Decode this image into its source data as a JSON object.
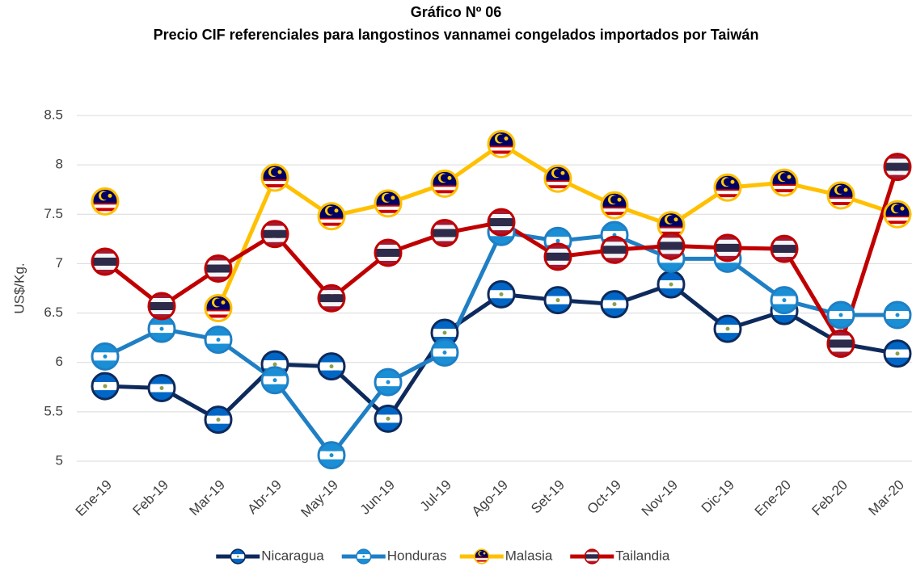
{
  "chart_data": {
    "type": "line",
    "title": "Gráfico Nº 06",
    "subtitle": "Precio CIF referenciales para langostinos vannamei congelados importados por Taiwán",
    "y_label": "US$/Kg.",
    "categories": [
      "Ene-19",
      "Feb-19",
      "Mar-19",
      "Abr-19",
      "May-19",
      "Jun-19",
      "Jul-19",
      "Ago-19",
      "Set-19",
      "Oct-19",
      "Nov-19",
      "Dic-19",
      "Ene-20",
      "Feb-20",
      "Mar-20"
    ],
    "series": [
      {
        "name": "Nicaragua",
        "color": "#0e2a5c",
        "values": [
          5.76,
          5.74,
          5.42,
          5.98,
          5.96,
          5.43,
          6.3,
          6.69,
          6.63,
          6.59,
          6.79,
          6.34,
          6.52,
          6.19,
          6.09
        ]
      },
      {
        "name": "Honduras",
        "color": "#1f7fc4",
        "values": [
          6.06,
          6.34,
          6.23,
          5.82,
          5.06,
          5.8,
          6.1,
          7.32,
          7.23,
          7.29,
          7.05,
          7.05,
          6.63,
          6.48,
          6.48
        ]
      },
      {
        "name": "Malasia",
        "color": "#ffc000",
        "values": [
          7.63,
          null,
          6.55,
          7.87,
          7.48,
          7.61,
          7.81,
          8.21,
          7.86,
          7.59,
          7.39,
          7.77,
          7.82,
          7.69,
          7.5
        ]
      },
      {
        "name": "Tailandia",
        "color": "#c00000",
        "values": [
          7.02,
          6.57,
          6.95,
          7.3,
          6.65,
          7.11,
          7.31,
          7.42,
          7.07,
          7.14,
          7.18,
          7.16,
          7.15,
          6.19,
          7.98
        ]
      }
    ],
    "ylim": [
      5,
      8.5
    ],
    "yticks": [
      5,
      5.5,
      6,
      6.5,
      7,
      7.5,
      8,
      8.5
    ],
    "grid": true,
    "legend": "bottom"
  }
}
